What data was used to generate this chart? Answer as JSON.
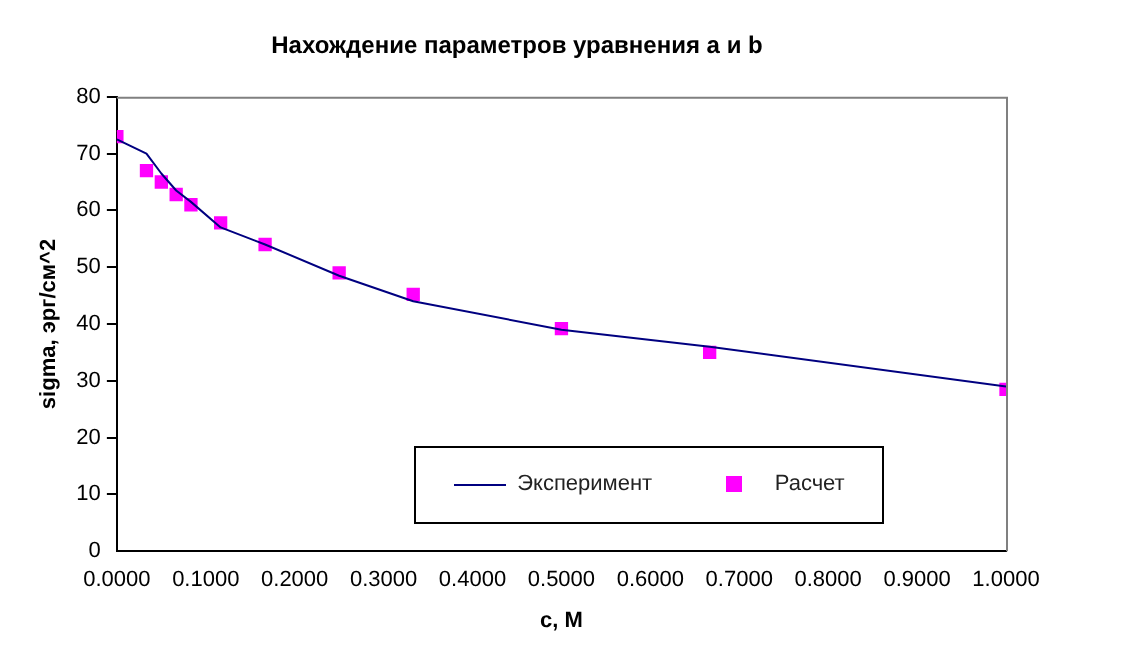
{
  "chart_data": {
    "type": "line",
    "title": "Нахождение параметров уравнения a и b",
    "xlabel": "c, M",
    "ylabel": "sigma, эрг/см^2",
    "x": [
      0,
      0.0333,
      0.05,
      0.0667,
      0.0833,
      0.1167,
      0.1667,
      0.25,
      0.3333,
      0.5,
      0.6667,
      1.0
    ],
    "series": [
      {
        "name": "Эксперимент",
        "type": "line",
        "color": "#000080",
        "marker": "none",
        "line_style": "solid",
        "values": [
          72.5,
          70,
          66.5,
          63.5,
          61.5,
          57,
          54,
          48.5,
          44,
          39,
          36,
          29
        ]
      },
      {
        "name": "Расчет",
        "type": "scatter",
        "color": "#ff00ff",
        "marker": "square",
        "values": [
          73,
          67,
          65,
          62.8,
          61,
          57.8,
          54,
          49,
          45.2,
          39.2,
          35,
          28.5
        ]
      }
    ],
    "xlim": [
      0,
      1
    ],
    "ylim": [
      0,
      80
    ],
    "xticks": [
      {
        "value": 0,
        "label": "0.0000"
      },
      {
        "value": 0.1,
        "label": "0.1000"
      },
      {
        "value": 0.2,
        "label": "0.2000"
      },
      {
        "value": 0.3,
        "label": "0.3000"
      },
      {
        "value": 0.4,
        "label": "0.4000"
      },
      {
        "value": 0.5,
        "label": "0.5000"
      },
      {
        "value": 0.6,
        "label": "0.6000"
      },
      {
        "value": 0.7,
        "label": "0.7000"
      },
      {
        "value": 0.8,
        "label": "0.8000"
      },
      {
        "value": 0.9,
        "label": "0.9000"
      },
      {
        "value": 1,
        "label": "1.0000"
      }
    ],
    "yticks": [
      0,
      10,
      20,
      30,
      40,
      50,
      60,
      70,
      80
    ],
    "grid": false,
    "legend": "bottom right"
  }
}
